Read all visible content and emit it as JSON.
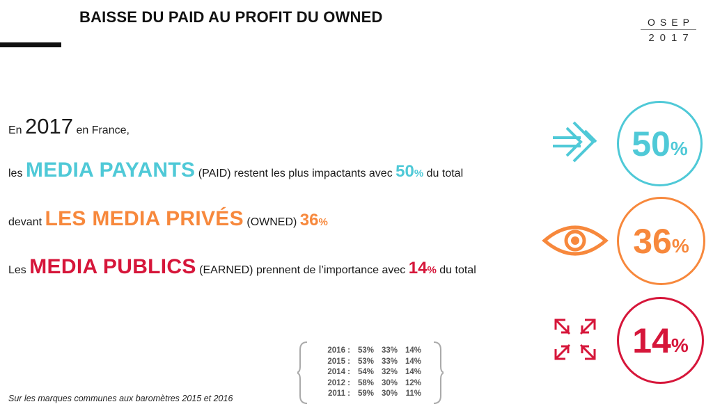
{
  "header": {
    "title": "BAISSE DU PAID AU PROFIT DU OWNED",
    "logo_top": "OSEP",
    "logo_year": "2017"
  },
  "statement": {
    "line1": {
      "prefix": "En",
      "year": "2017",
      "suffix": "en France,"
    },
    "line2": {
      "prefix": "les",
      "keyword": "MEDIA PAYANTS",
      "text": "(PAID) restent les plus impactants avec",
      "value": "50",
      "unit": "%",
      "suffix": "du total"
    },
    "line3": {
      "prefix": "devant",
      "keyword": "LES MEDIA PRIVÉS",
      "text": "(OWNED)",
      "value": "36",
      "unit": "%"
    },
    "line4": {
      "prefix": "Les",
      "keyword": "MEDIA PUBLICS",
      "text": "(EARNED) prennent de l’importance avec",
      "value": "14",
      "unit": "%",
      "suffix": "du total"
    }
  },
  "history": [
    {
      "year": "2016 :",
      "paid": "53%",
      "owned": "33%",
      "earned": "14%"
    },
    {
      "year": "2015 :",
      "paid": "53%",
      "owned": "33%",
      "earned": "14%"
    },
    {
      "year": "2014 :",
      "paid": "54%",
      "owned": "32%",
      "earned": "14%"
    },
    {
      "year": "2012 :",
      "paid": "58%",
      "owned": "30%",
      "earned": "12%"
    },
    {
      "year": "2011 :",
      "paid": "59%",
      "owned": "30%",
      "earned": "11%"
    }
  ],
  "footnote": "Sur les marques communes aux baromètres 2015 et 2016",
  "kpis": [
    {
      "value": "50",
      "unit": "%",
      "color": "#4fc9d7",
      "icon": "arrow-in-icon"
    },
    {
      "value": "36",
      "unit": "%",
      "color": "#f7883c",
      "icon": "eye-icon"
    },
    {
      "value": "14",
      "unit": "%",
      "color": "#d6163a",
      "icon": "expand-arrows-icon"
    }
  ],
  "colors": {
    "paid": "#4fc9d7",
    "owned": "#f7883c",
    "earned": "#d6163a"
  }
}
